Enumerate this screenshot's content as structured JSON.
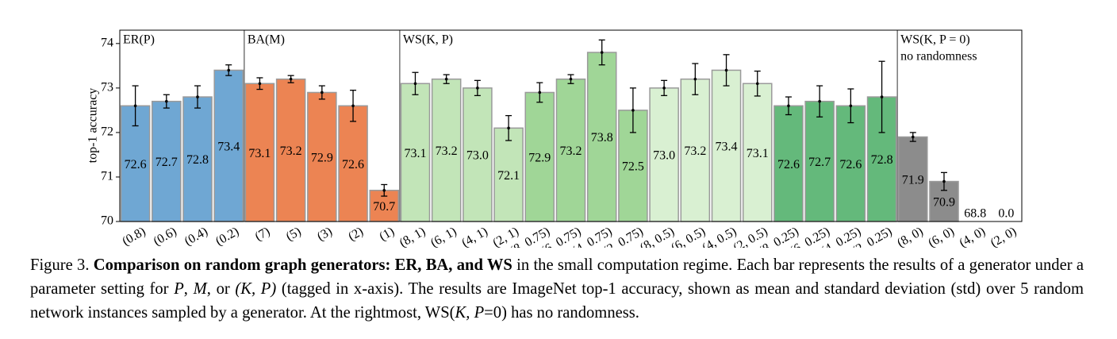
{
  "chart_data": {
    "type": "bar",
    "ylabel": "top-1 accuracy",
    "ylim": [
      70,
      74.3
    ],
    "yticks": [
      70,
      71,
      72,
      73,
      74
    ],
    "edge_color": "#9a9a9a",
    "groups": [
      {
        "name": "ER(P)",
        "categories": [
          "(0.8)",
          "(0.6)",
          "(0.4)",
          "(0.2)"
        ],
        "values": [
          72.6,
          72.7,
          72.8,
          73.4
        ],
        "value_labels": [
          "72.6",
          "72.7",
          "72.8",
          "73.4"
        ],
        "errors": [
          0.45,
          0.15,
          0.25,
          0.12
        ],
        "colors": [
          "#6fa7d3",
          "#6fa7d3",
          "#6fa7d3",
          "#6fa7d3"
        ]
      },
      {
        "name": "BA(M)",
        "categories": [
          "(7)",
          "(5)",
          "(3)",
          "(2)",
          "(1)"
        ],
        "values": [
          73.1,
          73.2,
          72.9,
          72.6,
          70.7
        ],
        "value_labels": [
          "73.1",
          "73.2",
          "72.9",
          "72.6",
          "70.7"
        ],
        "errors": [
          0.13,
          0.08,
          0.15,
          0.35,
          0.13
        ],
        "colors": [
          "#ec8453",
          "#ec8453",
          "#ec8453",
          "#ec8453",
          "#ec8453"
        ]
      },
      {
        "name": "WS(K, P)",
        "categories": [
          "(8, 1)",
          "(6, 1)",
          "(4, 1)",
          "(2, 1)",
          "(8, 0.75)",
          "(6, 0.75)",
          "(4, 0.75)",
          "(2, 0.75)",
          "(8, 0.5)",
          "(6, 0.5)",
          "(4, 0.5)",
          "(2, 0.5)",
          "(8, 0.25)",
          "(6, 0.25)",
          "(4, 0.25)",
          "(2, 0.25)"
        ],
        "values": [
          73.1,
          73.2,
          73.0,
          72.1,
          72.9,
          73.2,
          73.8,
          72.5,
          73.0,
          73.2,
          73.4,
          73.1,
          72.6,
          72.7,
          72.6,
          72.8
        ],
        "value_labels": [
          "73.1",
          "73.2",
          "73.0",
          "72.1",
          "72.9",
          "73.2",
          "73.8",
          "72.5",
          "73.0",
          "73.2",
          "73.4",
          "73.1",
          "72.6",
          "72.7",
          "72.6",
          "72.8"
        ],
        "errors": [
          0.25,
          0.1,
          0.17,
          0.28,
          0.22,
          0.1,
          0.28,
          0.5,
          0.17,
          0.35,
          0.35,
          0.28,
          0.2,
          0.35,
          0.38,
          0.8
        ],
        "colors": [
          "#c2e5b8",
          "#c2e5b8",
          "#c2e5b8",
          "#c2e5b8",
          "#a0d697",
          "#a0d697",
          "#a0d697",
          "#a0d697",
          "#d9f0d2",
          "#d9f0d2",
          "#d9f0d2",
          "#d9f0d2",
          "#64b97b",
          "#64b97b",
          "#64b97b",
          "#64b97b"
        ]
      },
      {
        "name": "WS(K, P = 0)",
        "note": "no randomness",
        "categories": [
          "(8, 0)",
          "(6, 0)",
          "(4, 0)",
          "(2, 0)"
        ],
        "values": [
          71.9,
          70.9,
          68.8,
          0.0
        ],
        "value_labels": [
          "71.9",
          "70.9",
          "68.8",
          "0.0"
        ],
        "errors": [
          0.1,
          0.2,
          null,
          null
        ],
        "colors": [
          "#8c8c8c",
          "#8c8c8c",
          "#8c8c8c",
          "#8c8c8c"
        ]
      }
    ]
  },
  "caption": [
    {
      "text": "Figure 3. ",
      "style": "normal"
    },
    {
      "text": "Comparison on random graph generators: ER, BA, and WS",
      "style": "bold"
    },
    {
      "text": " in the small computation regime. Each bar represents the results of a generator under a parameter setting for ",
      "style": "normal"
    },
    {
      "text": "P",
      "style": "italic"
    },
    {
      "text": ", ",
      "style": "normal"
    },
    {
      "text": "M",
      "style": "italic"
    },
    {
      "text": ", or ",
      "style": "normal"
    },
    {
      "text": "(K, P)",
      "style": "italic"
    },
    {
      "text": " (tagged in x-axis). The results are ImageNet top-1 accuracy, shown as mean and standard deviation (std) over 5 random network instances sampled by a generator. At the rightmost, WS(",
      "style": "normal"
    },
    {
      "text": "K, P",
      "style": "italic"
    },
    {
      "text": "=0) has no randomness.",
      "style": "normal"
    }
  ]
}
